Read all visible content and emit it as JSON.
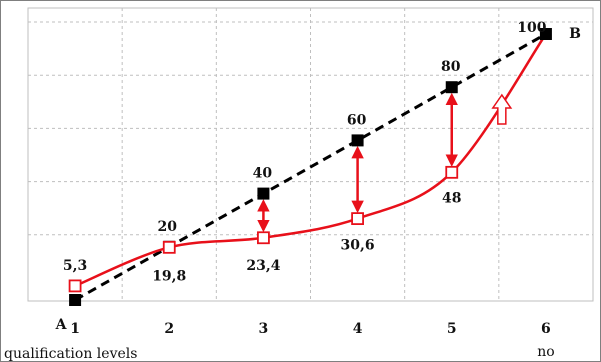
{
  "colors": {
    "reference_line": "#000000",
    "actual_line": "#e8101a",
    "grid": "#bfbfbf",
    "frame": "#7f7f7f"
  },
  "chart_data": {
    "type": "line",
    "categories": [
      "1",
      "2",
      "3",
      "4",
      "5",
      "6"
    ],
    "xlabel": "qualification levels",
    "ylim": [
      0,
      100
    ],
    "grid": true,
    "series": [
      {
        "style": "dashed-black-squares",
        "x": [
          1,
          2,
          3,
          4,
          5,
          6
        ],
        "values": [
          0,
          20,
          40,
          60,
          80,
          100
        ],
        "labels": [
          "",
          "20",
          "40",
          "60",
          "80",
          "100"
        ]
      },
      {
        "style": "solid-red-open-squares",
        "x": [
          1,
          2,
          3,
          4,
          5
        ],
        "values": [
          5.3,
          19.8,
          23.4,
          30.6,
          48
        ],
        "labels": [
          "5,3",
          "19,8",
          "23,4",
          "30,6",
          "48"
        ]
      }
    ],
    "endpoint_labels": {
      "start": "A",
      "end": "B"
    },
    "last_tick_note": "no",
    "gap_arrows_at": [
      3,
      4,
      5
    ],
    "hollow_arrow_between": [
      5,
      6
    ]
  }
}
